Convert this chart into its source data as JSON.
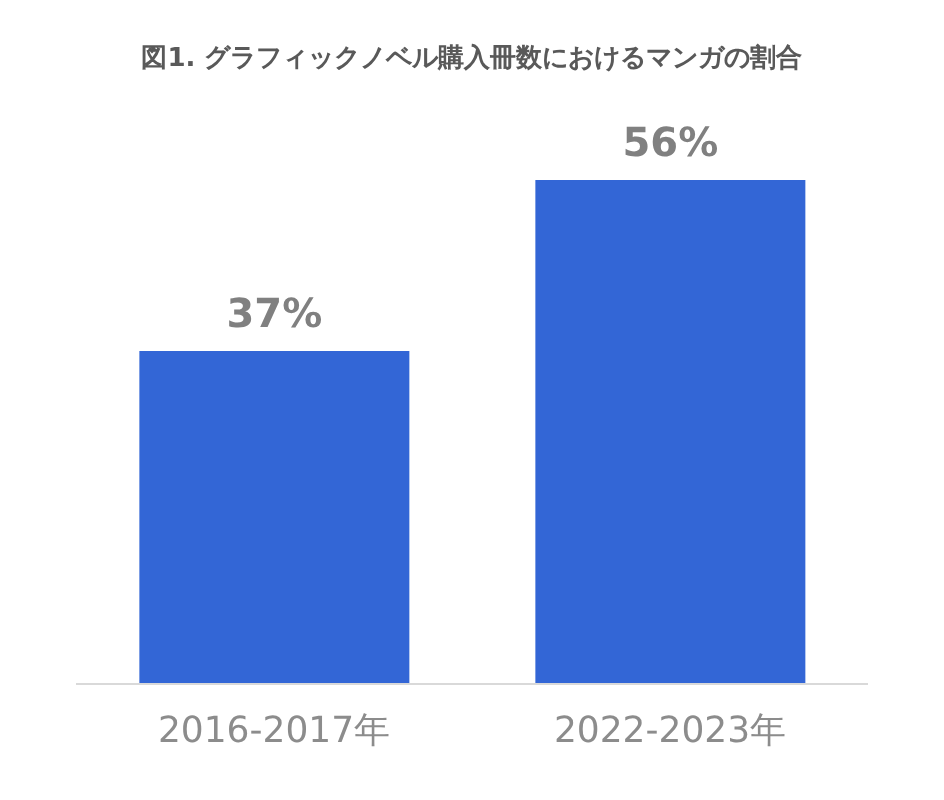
{
  "chart_data": {
    "type": "bar",
    "title": "図1. グラフィックノベル購入冊数におけるマンガの割合",
    "categories": [
      "2016-2017年",
      "2022-2023年"
    ],
    "values": [
      37,
      56
    ],
    "value_labels": [
      "37%",
      "56%"
    ],
    "color": "#3366d6"
  }
}
